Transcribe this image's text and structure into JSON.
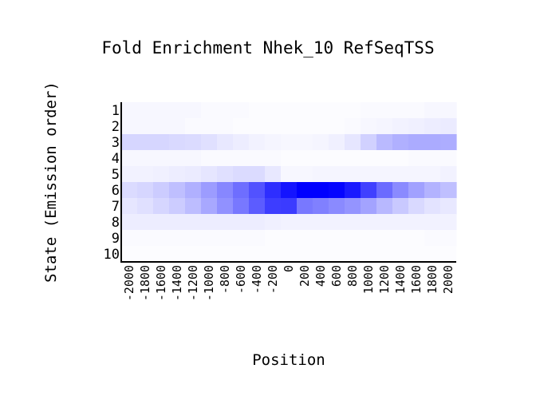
{
  "chart_data": {
    "type": "heatmap",
    "title": "Fold Enrichment Nhek_10 RefSeqTSS",
    "xlabel": "Position",
    "ylabel": "State (Emission order)",
    "x_tick_labels": [
      "-2000",
      "-1800",
      "-1600",
      "-1400",
      "-1200",
      "-1000",
      "-800",
      "-600",
      "-400",
      "-200",
      "0",
      "200",
      "400",
      "600",
      "800",
      "1000",
      "1200",
      "1400",
      "1600",
      "1800",
      "2000"
    ],
    "y_tick_labels": [
      "1",
      "2",
      "3",
      "4",
      "5",
      "6",
      "7",
      "8",
      "9",
      "10"
    ],
    "colormap": {
      "low": "#ffffff",
      "high": "#0000ff"
    },
    "intensity": [
      [
        0.03,
        0.03,
        0.03,
        0.03,
        0.03,
        0.02,
        0.02,
        0.02,
        0.01,
        0.01,
        0.01,
        0.01,
        0.01,
        0.01,
        0.01,
        0.02,
        0.02,
        0.02,
        0.02,
        0.03,
        0.03
      ],
      [
        0.03,
        0.03,
        0.03,
        0.03,
        0.02,
        0.02,
        0.02,
        0.01,
        0.01,
        0.01,
        0.01,
        0.01,
        0.01,
        0.01,
        0.02,
        0.03,
        0.04,
        0.05,
        0.06,
        0.07,
        0.08
      ],
      [
        0.16,
        0.16,
        0.16,
        0.15,
        0.14,
        0.12,
        0.09,
        0.07,
        0.05,
        0.04,
        0.03,
        0.03,
        0.04,
        0.06,
        0.1,
        0.18,
        0.27,
        0.31,
        0.33,
        0.33,
        0.32
      ],
      [
        0.03,
        0.03,
        0.03,
        0.03,
        0.03,
        0.02,
        0.02,
        0.02,
        0.02,
        0.02,
        0.01,
        0.01,
        0.01,
        0.01,
        0.01,
        0.01,
        0.01,
        0.01,
        0.02,
        0.02,
        0.02
      ],
      [
        0.05,
        0.05,
        0.06,
        0.07,
        0.08,
        0.1,
        0.12,
        0.14,
        0.14,
        0.09,
        0.03,
        0.03,
        0.04,
        0.04,
        0.04,
        0.04,
        0.04,
        0.04,
        0.04,
        0.04,
        0.05
      ],
      [
        0.14,
        0.16,
        0.2,
        0.25,
        0.31,
        0.39,
        0.47,
        0.57,
        0.68,
        0.82,
        0.92,
        1.0,
        1.0,
        0.98,
        0.9,
        0.75,
        0.58,
        0.46,
        0.37,
        0.3,
        0.25
      ],
      [
        0.1,
        0.12,
        0.16,
        0.2,
        0.26,
        0.34,
        0.43,
        0.53,
        0.64,
        0.76,
        0.77,
        0.53,
        0.5,
        0.46,
        0.42,
        0.36,
        0.28,
        0.21,
        0.15,
        0.11,
        0.09
      ],
      [
        0.07,
        0.07,
        0.07,
        0.07,
        0.07,
        0.07,
        0.07,
        0.07,
        0.07,
        0.06,
        0.05,
        0.05,
        0.05,
        0.05,
        0.05,
        0.05,
        0.05,
        0.05,
        0.05,
        0.05,
        0.05
      ],
      [
        0.02,
        0.02,
        0.02,
        0.02,
        0.02,
        0.02,
        0.02,
        0.02,
        0.02,
        0.01,
        0.01,
        0.01,
        0.01,
        0.01,
        0.01,
        0.01,
        0.01,
        0.01,
        0.01,
        0.02,
        0.02
      ],
      [
        0.01,
        0.01,
        0.01,
        0.01,
        0.01,
        0.01,
        0.01,
        0.01,
        0.01,
        0.01,
        0.01,
        0.01,
        0.01,
        0.01,
        0.01,
        0.01,
        0.01,
        0.01,
        0.01,
        0.01,
        0.01
      ]
    ]
  }
}
